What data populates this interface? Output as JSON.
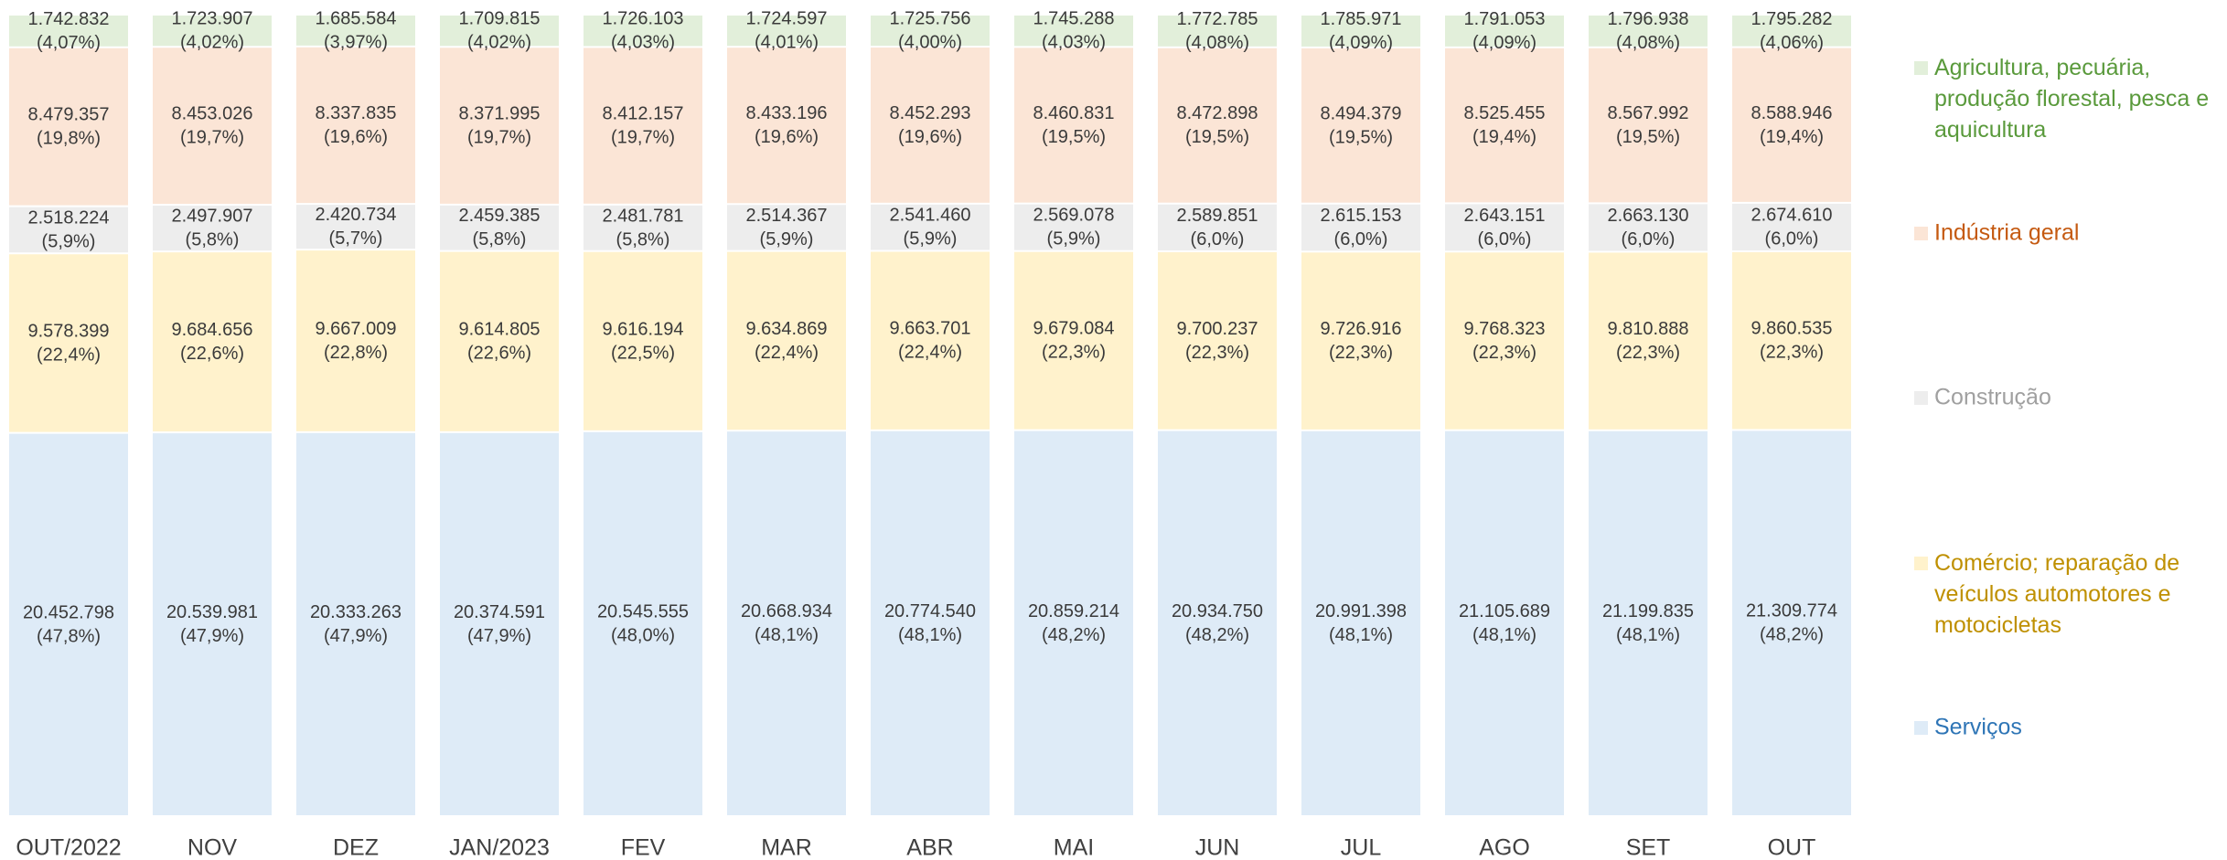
{
  "chart_data": {
    "type": "stacked_bar_100",
    "categories": [
      "OUT/2022",
      "NOV",
      "DEZ",
      "JAN/2023",
      "FEV",
      "MAR",
      "ABR",
      "MAI",
      "JUN",
      "JUL",
      "AGO",
      "SET",
      "OUT"
    ],
    "series": [
      {
        "name": "Serviços",
        "color": "#deebf7",
        "text_color": "#2e75b6",
        "values": [
          20452798,
          20539981,
          20333263,
          20374591,
          20545555,
          20668934,
          20774540,
          20859214,
          20934750,
          20991398,
          21105689,
          21199835,
          21309774
        ],
        "value_labels": [
          "20.452.798",
          "20.539.981",
          "20.333.263",
          "20.374.591",
          "20.545.555",
          "20.668.934",
          "20.774.540",
          "20.859.214",
          "20.934.750",
          "20.991.398",
          "21.105.689",
          "21.199.835",
          "21.309.774"
        ],
        "percent_labels": [
          "(47,8%)",
          "(47,9%)",
          "(47,9%)",
          "(47,9%)",
          "(48,0%)",
          "(48,1%)",
          "(48,1%)",
          "(48,2%)",
          "(48,2%)",
          "(48,1%)",
          "(48,1%)",
          "(48,1%)",
          "(48,2%)"
        ]
      },
      {
        "name": "Comércio; reparação de veículos automotores e motocicletas",
        "color": "#fff2cc",
        "text_color": "#bf9000",
        "values": [
          9578399,
          9684656,
          9667009,
          9614805,
          9616194,
          9634869,
          9663701,
          9679084,
          9700237,
          9726916,
          9768323,
          9810888,
          9860535
        ],
        "value_labels": [
          "9.578.399",
          "9.684.656",
          "9.667.009",
          "9.614.805",
          "9.616.194",
          "9.634.869",
          "9.663.701",
          "9.679.084",
          "9.700.237",
          "9.726.916",
          "9.768.323",
          "9.810.888",
          "9.860.535"
        ],
        "percent_labels": [
          "(22,4%)",
          "(22,6%)",
          "(22,8%)",
          "(22,6%)",
          "(22,5%)",
          "(22,4%)",
          "(22,4%)",
          "(22,3%)",
          "(22,3%)",
          "(22,3%)",
          "(22,3%)",
          "(22,3%)",
          "(22,3%)"
        ]
      },
      {
        "name": "Construção",
        "color": "#ededed",
        "text_color": "#a0a0a0",
        "values": [
          2518224,
          2497907,
          2420734,
          2459385,
          2481781,
          2514367,
          2541460,
          2569078,
          2589851,
          2615153,
          2643151,
          2663130,
          2674610
        ],
        "value_labels": [
          "2.518.224",
          "2.497.907",
          "2.420.734",
          "2.459.385",
          "2.481.781",
          "2.514.367",
          "2.541.460",
          "2.569.078",
          "2.589.851",
          "2.615.153",
          "2.643.151",
          "2.663.130",
          "2.674.610"
        ],
        "percent_labels": [
          "(5,9%)",
          "(5,8%)",
          "(5,7%)",
          "(5,8%)",
          "(5,8%)",
          "(5,9%)",
          "(5,9%)",
          "(5,9%)",
          "(6,0%)",
          "(6,0%)",
          "(6,0%)",
          "(6,0%)",
          "(6,0%)"
        ]
      },
      {
        "name": "Indústria geral",
        "color": "#fbe5d6",
        "text_color": "#c55a11",
        "values": [
          8479357,
          8453026,
          8337835,
          8371995,
          8412157,
          8433196,
          8452293,
          8460831,
          8472898,
          8494379,
          8525455,
          8567992,
          8588946
        ],
        "value_labels": [
          "8.479.357",
          "8.453.026",
          "8.337.835",
          "8.371.995",
          "8.412.157",
          "8.433.196",
          "8.452.293",
          "8.460.831",
          "8.472.898",
          "8.494.379",
          "8.525.455",
          "8.567.992",
          "8.588.946"
        ],
        "percent_labels": [
          "(19,8%)",
          "(19,7%)",
          "(19,6%)",
          "(19,7%)",
          "(19,7%)",
          "(19,6%)",
          "(19,6%)",
          "(19,5%)",
          "(19,5%)",
          "(19,5%)",
          "(19,4%)",
          "(19,5%)",
          "(19,4%)"
        ]
      },
      {
        "name": "Agricultura, pecuária, produção florestal, pesca e aquicultura",
        "color": "#e2efda",
        "text_color": "#5a9a3c",
        "values": [
          1742832,
          1723907,
          1685584,
          1709815,
          1726103,
          1724597,
          1725756,
          1745288,
          1772785,
          1785971,
          1791053,
          1796938,
          1795282
        ],
        "value_labels": [
          "1.742.832",
          "1.723.907",
          "1.685.584",
          "1.709.815",
          "1.726.103",
          "1.724.597",
          "1.725.756",
          "1.745.288",
          "1.772.785",
          "1.785.971",
          "1.791.053",
          "1.796.938",
          "1.795.282"
        ],
        "percent_labels": [
          "(4,07%)",
          "(4,02%)",
          "(3,97%)",
          "(4,02%)",
          "(4,03%)",
          "(4,01%)",
          "(4,00%)",
          "(4,03%)",
          "(4,08%)",
          "(4,09%)",
          "(4,09%)",
          "(4,08%)",
          "(4,06%)"
        ]
      }
    ],
    "legend": "right"
  }
}
